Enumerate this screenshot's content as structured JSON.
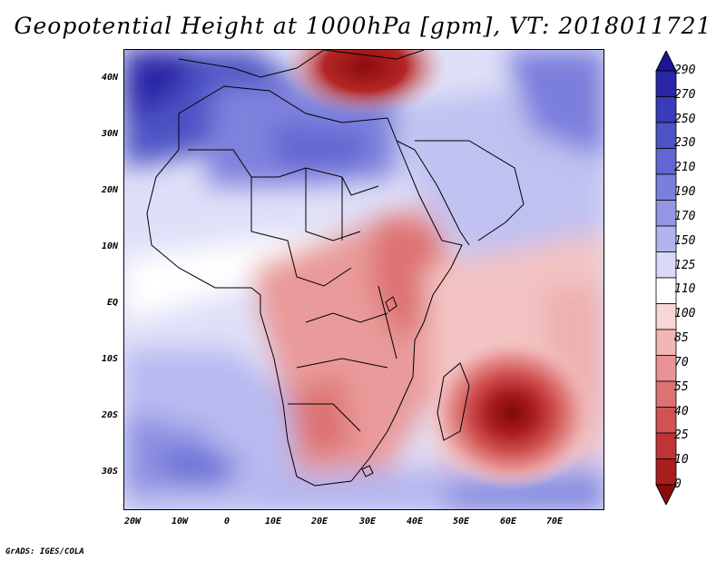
{
  "title": "Geopotential Height at 1000hPa [gpm], VT: 2018011721",
  "credit": "GrADS: IGES/COLA",
  "map": {
    "region": "Africa",
    "lon_range": [
      -25,
      80
    ],
    "lat_range": [
      -37,
      45
    ],
    "lat_ticks": [
      {
        "value": 40,
        "label": "40N"
      },
      {
        "value": 30,
        "label": "30N"
      },
      {
        "value": 20,
        "label": "20N"
      },
      {
        "value": 10,
        "label": "10N"
      },
      {
        "value": 0,
        "label": "EQ"
      },
      {
        "value": -10,
        "label": "10S"
      },
      {
        "value": -20,
        "label": "20S"
      },
      {
        "value": -30,
        "label": "30S"
      }
    ],
    "lon_ticks": [
      {
        "value": -20,
        "label": "20W"
      },
      {
        "value": -10,
        "label": "10W"
      },
      {
        "value": 0,
        "label": "0"
      },
      {
        "value": 10,
        "label": "10E"
      },
      {
        "value": 20,
        "label": "20E"
      },
      {
        "value": 30,
        "label": "30E"
      },
      {
        "value": 40,
        "label": "40E"
      },
      {
        "value": 50,
        "label": "50E"
      },
      {
        "value": 60,
        "label": "60E"
      },
      {
        "value": 70,
        "label": "70E"
      }
    ],
    "features": [
      {
        "name": "mediterranean-high",
        "lon": 33,
        "lat": 43,
        "value": 0
      },
      {
        "name": "mascarene-low",
        "lon": 60,
        "lat": -20,
        "value": 5
      },
      {
        "name": "atlantic-northwest-high-value",
        "lon": -22,
        "lat": 40,
        "value": 250
      },
      {
        "name": "southern-ocean-high-value",
        "lon": 70,
        "lat": -36,
        "value": 220
      }
    ]
  },
  "colorbar": {
    "labels": [
      "290",
      "270",
      "250",
      "230",
      "210",
      "190",
      "170",
      "150",
      "125",
      "110",
      "100",
      "85",
      "70",
      "55",
      "40",
      "25",
      "10",
      "0"
    ],
    "colors": [
      "#1d1694",
      "#2a26a8",
      "#3a3bb8",
      "#4d52c6",
      "#6266d2",
      "#7a7edc",
      "#9496e4",
      "#b2b4ee",
      "#d8daf7",
      "#ffffff",
      "#f8d6d6",
      "#f1b6b6",
      "#e89494",
      "#dd7272",
      "#d05252",
      "#c03434",
      "#a91d1d",
      "#8c0c0c"
    ]
  }
}
